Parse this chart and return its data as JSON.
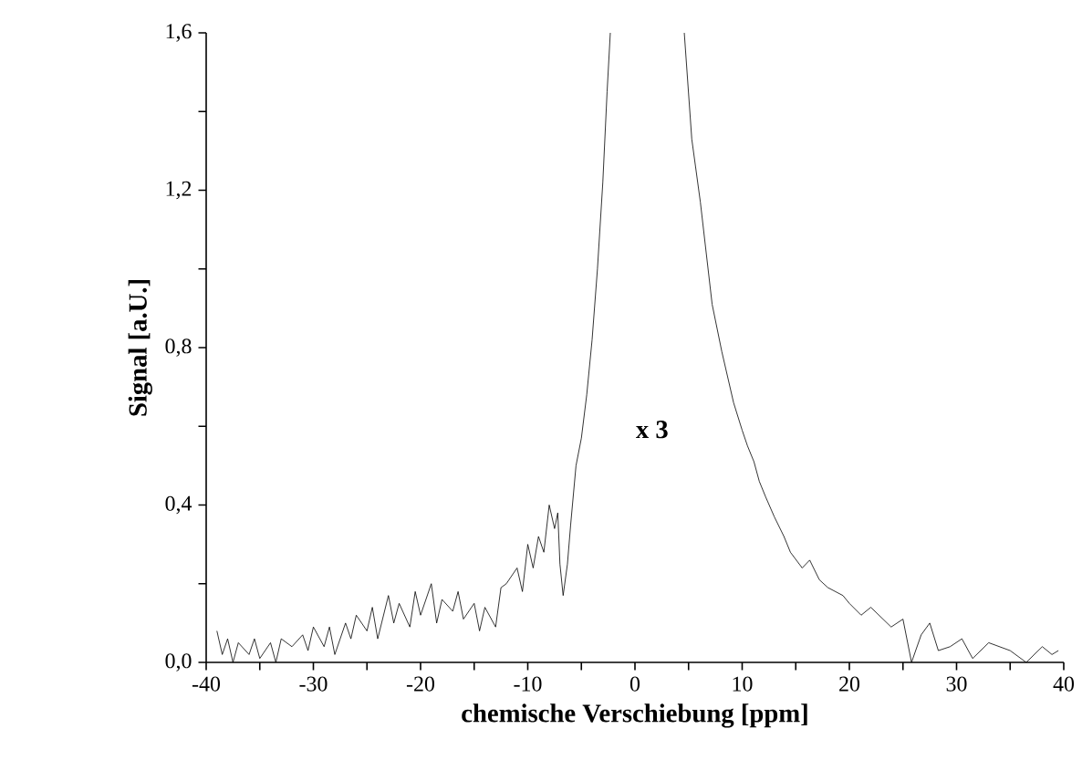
{
  "chart_data": {
    "type": "line",
    "xlabel": "chemische Verschiebung [ppm]",
    "ylabel": "Signal [a.U.]",
    "annotations": [
      "x 3"
    ],
    "color": "#000000",
    "xlim": [
      -40,
      40
    ],
    "ylim": [
      0,
      1.6
    ],
    "xticks": [
      -40,
      {
        "value": -35,
        "label": null
      },
      -30,
      {
        "value": -25,
        "label": null
      },
      -20,
      {
        "value": -15,
        "label": null
      },
      -10,
      {
        "value": -5,
        "label": null
      },
      0,
      {
        "value": 5,
        "label": null
      },
      10,
      {
        "value": 15,
        "label": null
      },
      20,
      {
        "value": 25,
        "label": null
      },
      30,
      {
        "value": 35,
        "label": null
      },
      40
    ],
    "yticks": [
      {
        "value": 0,
        "label": "0,0"
      },
      {
        "value": 0.2,
        "label": null
      },
      {
        "value": 0.4,
        "label": "0,4"
      },
      {
        "value": 0.6,
        "label": null
      },
      {
        "value": 0.8,
        "label": "0,8"
      },
      {
        "value": 1.0,
        "label": null
      },
      {
        "value": 1.2,
        "label": "1,2"
      },
      {
        "value": 1.4,
        "label": null
      },
      {
        "value": 1.6,
        "label": "1,6"
      }
    ],
    "x": [
      -39,
      -38.5,
      -38,
      -37.5,
      -37,
      -36,
      -35.5,
      -35,
      -34,
      -33.5,
      -33,
      -32,
      -31,
      -30.5,
      -30,
      -29,
      -28.5,
      -28,
      -27,
      -26.5,
      -26,
      -25,
      -24.5,
      -24,
      -23,
      -22.5,
      -22,
      -21,
      -20.5,
      -20,
      -19,
      -18.5,
      -18,
      -17,
      -16.5,
      -16,
      -15,
      -14.5,
      -14,
      -13,
      -12.5,
      -12,
      -11,
      -10.5,
      -10,
      -9.5,
      -9,
      -8.5,
      -8,
      -7.5,
      -7.2,
      -7,
      -6.7,
      -6.3,
      -6,
      -5.5,
      -5,
      -4.5,
      -4,
      -3.5,
      -3,
      -2.6,
      -2.3,
      0,
      4.6,
      5.3,
      6.1,
      7.2,
      8.1,
      9.2,
      10,
      10.5,
      11.1,
      11.6,
      12.2,
      13,
      13.9,
      14.5,
      15.6,
      16.3,
      17.2,
      18,
      19.4,
      20,
      21.1,
      22,
      23.9,
      25,
      25.8,
      26.7,
      27.5,
      28.3,
      29.4,
      30.5,
      31.5,
      33,
      35,
      36.5,
      38,
      38.9,
      39.5
    ],
    "values": [
      0.08,
      0.02,
      0.06,
      0.0,
      0.05,
      0.02,
      0.06,
      0.01,
      0.05,
      0.0,
      0.06,
      0.04,
      0.07,
      0.03,
      0.09,
      0.04,
      0.09,
      0.02,
      0.1,
      0.06,
      0.12,
      0.08,
      0.14,
      0.06,
      0.17,
      0.1,
      0.15,
      0.09,
      0.18,
      0.12,
      0.2,
      0.1,
      0.16,
      0.13,
      0.18,
      0.11,
      0.15,
      0.08,
      0.14,
      0.09,
      0.19,
      0.2,
      0.24,
      0.18,
      0.3,
      0.24,
      0.32,
      0.28,
      0.4,
      0.34,
      0.38,
      0.25,
      0.17,
      0.25,
      0.35,
      0.5,
      0.57,
      0.68,
      0.82,
      1.0,
      1.22,
      1.45,
      1.6,
      null,
      1.6,
      1.33,
      1.17,
      0.91,
      0.79,
      0.66,
      0.59,
      0.55,
      0.51,
      0.46,
      0.42,
      0.37,
      0.32,
      0.28,
      0.24,
      0.26,
      0.21,
      0.19,
      0.17,
      0.15,
      0.12,
      0.14,
      0.09,
      0.11,
      0.0,
      0.07,
      0.1,
      0.03,
      0.04,
      0.06,
      0.01,
      0.05,
      0.03,
      0.0,
      0.04,
      0.02,
      0.03
    ]
  }
}
